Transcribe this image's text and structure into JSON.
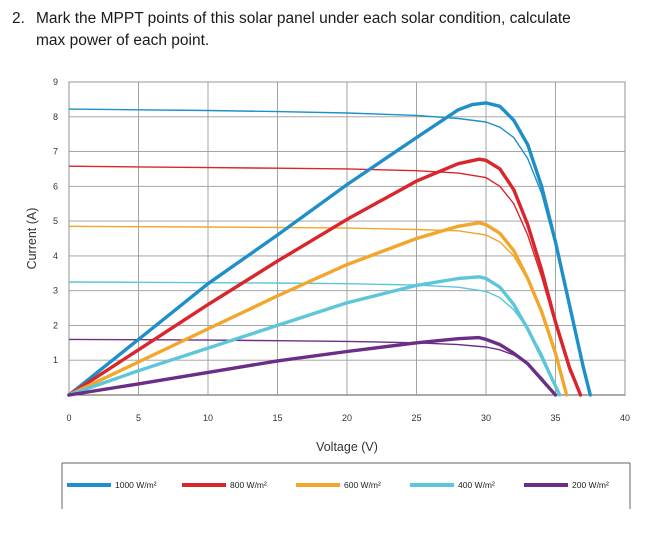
{
  "question": {
    "number": "2.",
    "line1": "Mark the MPPT points of this solar panel under each solar condition, calculate",
    "line2": "max power of each point."
  },
  "chart_data": {
    "type": "line",
    "xlabel": "Voltage (V)",
    "ylabel": "Current (A)",
    "xlim": [
      0,
      40
    ],
    "ylim": [
      0,
      9
    ],
    "xticks": [
      "0",
      "5",
      "10",
      "15",
      "20",
      "25",
      "30",
      "35",
      "40"
    ],
    "yticks": [
      "1",
      "2",
      "3",
      "4",
      "5",
      "6",
      "7",
      "8",
      "9"
    ],
    "grid": true,
    "legend_position": "bottom",
    "series": [
      {
        "name": "1000 W/m²",
        "color": "#1f8fc9",
        "current_curve": {
          "x": [
            0,
            5,
            10,
            15,
            20,
            25,
            28,
            30,
            31,
            32,
            33,
            34,
            35,
            36,
            37,
            37.5
          ],
          "y": [
            8.22,
            8.2,
            8.18,
            8.15,
            8.11,
            8.04,
            7.95,
            7.85,
            7.7,
            7.4,
            6.8,
            5.8,
            4.3,
            2.5,
            0.8,
            0
          ]
        },
        "power_curve": {
          "x": [
            0,
            5,
            10,
            15,
            20,
            25,
            28,
            29,
            30,
            31,
            32,
            33,
            34,
            35,
            36,
            37,
            37.5
          ],
          "y": [
            0,
            1.6,
            3.2,
            4.6,
            6.05,
            7.4,
            8.2,
            8.35,
            8.4,
            8.3,
            7.9,
            7.2,
            6.0,
            4.4,
            2.6,
            0.8,
            0
          ]
        }
      },
      {
        "name": "800 W/m²",
        "color": "#d9262c",
        "current_curve": {
          "x": [
            0,
            5,
            10,
            15,
            20,
            25,
            28,
            30,
            31,
            32,
            33,
            34,
            35,
            36,
            36.8
          ],
          "y": [
            6.58,
            6.56,
            6.54,
            6.52,
            6.5,
            6.45,
            6.38,
            6.25,
            6.0,
            5.5,
            4.6,
            3.4,
            2.0,
            0.7,
            0
          ]
        },
        "power_curve": {
          "x": [
            0,
            5,
            10,
            15,
            20,
            25,
            28,
            29.5,
            30,
            31,
            32,
            33,
            34,
            35,
            36,
            36.8
          ],
          "y": [
            0,
            1.3,
            2.6,
            3.85,
            5.05,
            6.15,
            6.65,
            6.78,
            6.75,
            6.5,
            5.9,
            4.9,
            3.6,
            2.1,
            0.8,
            0
          ]
        }
      },
      {
        "name": "600 W/m²",
        "color": "#f2a62c",
        "current_curve": {
          "x": [
            0,
            5,
            10,
            15,
            20,
            25,
            28,
            30,
            31,
            32,
            33,
            34,
            35,
            35.8
          ],
          "y": [
            4.85,
            4.84,
            4.83,
            4.82,
            4.8,
            4.76,
            4.72,
            4.6,
            4.4,
            4.0,
            3.3,
            2.4,
            1.2,
            0
          ]
        },
        "power_curve": {
          "x": [
            0,
            5,
            10,
            15,
            20,
            25,
            28,
            29.5,
            30,
            31,
            32,
            33,
            34,
            35,
            35.8
          ],
          "y": [
            0,
            0.95,
            1.9,
            2.85,
            3.75,
            4.5,
            4.85,
            4.95,
            4.9,
            4.65,
            4.15,
            3.35,
            2.4,
            1.2,
            0
          ]
        }
      },
      {
        "name": "400 W/m²",
        "color": "#5dc6d8",
        "current_curve": {
          "x": [
            0,
            5,
            10,
            15,
            20,
            25,
            28,
            30,
            31,
            32,
            33,
            34,
            35.3
          ],
          "y": [
            3.25,
            3.24,
            3.23,
            3.22,
            3.2,
            3.16,
            3.1,
            2.98,
            2.8,
            2.45,
            1.9,
            1.2,
            0
          ]
        },
        "power_curve": {
          "x": [
            0,
            5,
            10,
            15,
            20,
            25,
            28,
            29.5,
            30,
            31,
            32,
            33,
            34,
            35.3
          ],
          "y": [
            0,
            0.7,
            1.35,
            2.0,
            2.65,
            3.15,
            3.35,
            3.4,
            3.35,
            3.1,
            2.6,
            1.9,
            1.1,
            0
          ]
        }
      },
      {
        "name": "200 W/m²",
        "color": "#6b2d86",
        "current_curve": {
          "x": [
            0,
            5,
            10,
            15,
            20,
            25,
            28,
            30,
            31,
            32,
            33,
            34,
            35
          ],
          "y": [
            1.6,
            1.59,
            1.58,
            1.56,
            1.54,
            1.5,
            1.45,
            1.38,
            1.3,
            1.15,
            0.9,
            0.5,
            0
          ]
        },
        "power_curve": {
          "x": [
            0,
            5,
            10,
            15,
            20,
            25,
            28,
            29.5,
            30,
            31,
            32,
            33,
            34,
            35
          ],
          "y": [
            0,
            0.32,
            0.65,
            0.98,
            1.25,
            1.5,
            1.62,
            1.65,
            1.6,
            1.45,
            1.2,
            0.9,
            0.45,
            0
          ]
        }
      }
    ]
  }
}
